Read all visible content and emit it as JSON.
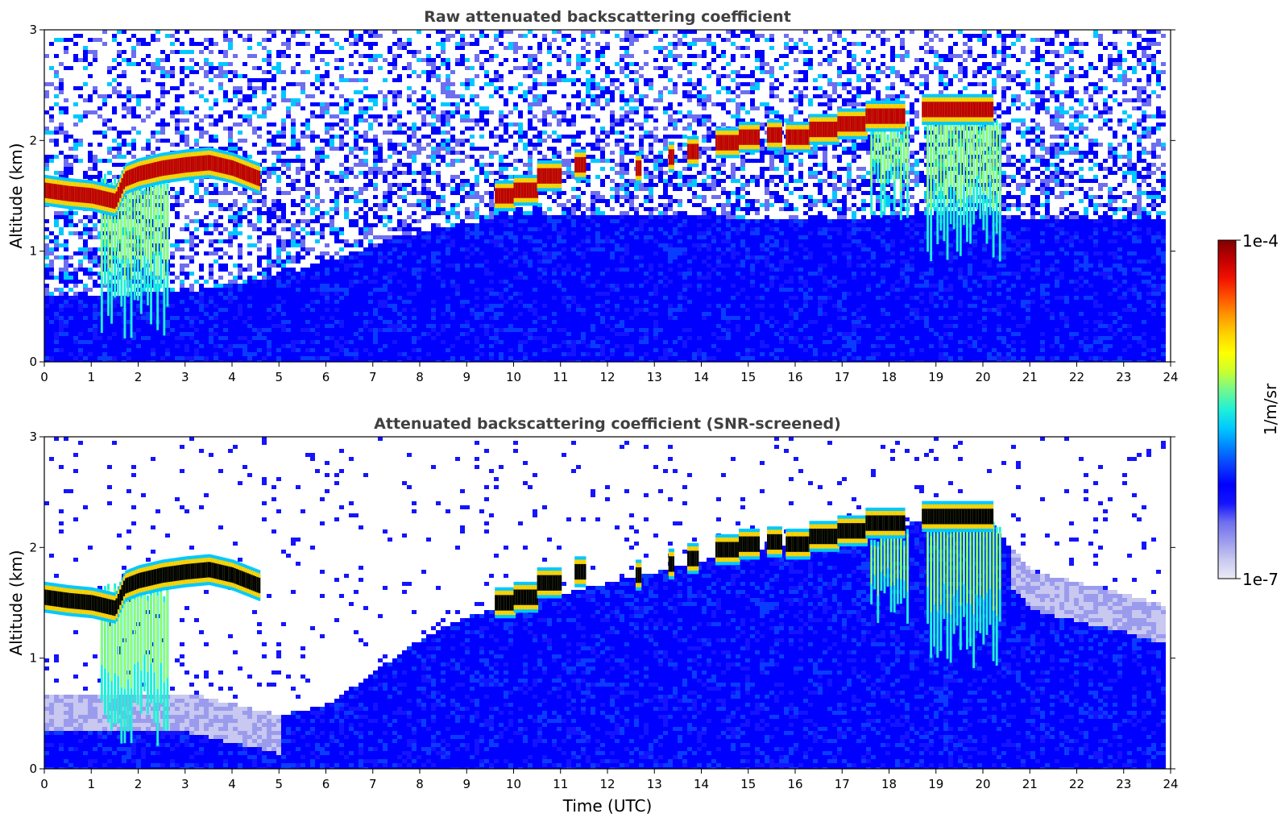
{
  "chart_data": [
    {
      "type": "heatmap",
      "title": "Raw attenuated backscattering coefficient",
      "xlabel": "",
      "ylabel": "Altitude (km)",
      "xlim": [
        0,
        24
      ],
      "ylim": [
        0,
        3
      ],
      "x_ticks": [
        "0",
        "1",
        "2",
        "3",
        "4",
        "5",
        "6",
        "7",
        "8",
        "9",
        "10",
        "11",
        "12",
        "13",
        "14",
        "15",
        "16",
        "17",
        "18",
        "19",
        "20",
        "21",
        "22",
        "23",
        "24"
      ],
      "y_ticks": [
        "0",
        "1",
        "2",
        "3"
      ],
      "data_end_time": 23.8,
      "cloud_layer": {
        "time": [
          0.0,
          0.5,
          1.0,
          1.5,
          1.7,
          2.0,
          2.5,
          3.0,
          3.5,
          4.0,
          4.6
        ],
        "altitude": [
          1.55,
          1.52,
          1.5,
          1.45,
          1.65,
          1.7,
          1.75,
          1.78,
          1.8,
          1.75,
          1.65
        ]
      },
      "cloud_segments": [
        {
          "t0": 9.6,
          "t1": 10.0,
          "altitude": 1.5
        },
        {
          "t0": 10.0,
          "t1": 10.5,
          "altitude": 1.55
        },
        {
          "t0": 10.5,
          "t1": 11.0,
          "altitude": 1.68
        },
        {
          "t0": 11.3,
          "t1": 11.5,
          "altitude": 1.78
        },
        {
          "t0": 12.6,
          "t1": 12.7,
          "altitude": 1.75
        },
        {
          "t0": 13.3,
          "t1": 13.4,
          "altitude": 1.85
        },
        {
          "t0": 13.7,
          "t1": 13.9,
          "altitude": 1.9
        },
        {
          "t0": 14.3,
          "t1": 14.8,
          "altitude": 1.98
        },
        {
          "t0": 14.8,
          "t1": 15.2,
          "altitude": 2.03
        },
        {
          "t0": 15.4,
          "t1": 15.7,
          "altitude": 2.05
        },
        {
          "t0": 15.8,
          "t1": 16.3,
          "altitude": 2.03
        },
        {
          "t0": 16.3,
          "t1": 16.9,
          "altitude": 2.1
        },
        {
          "t0": 16.9,
          "t1": 17.5,
          "altitude": 2.15
        },
        {
          "t0": 17.5,
          "t1": 18.3,
          "altitude": 2.22
        },
        {
          "t0": 18.7,
          "t1": 20.2,
          "altitude": 2.28
        }
      ],
      "precip_shafts": [
        {
          "t0": 1.2,
          "t1": 2.6,
          "top": 1.7,
          "bottom": 0.2
        },
        {
          "t0": 17.6,
          "t1": 18.4,
          "top": 2.2,
          "bottom": 1.2
        },
        {
          "t0": 18.8,
          "t1": 20.4,
          "top": 2.3,
          "bottom": 0.9
        }
      ]
    },
    {
      "type": "heatmap",
      "title": "Attenuated backscattering coefficient (SNR-screened)",
      "xlabel": "Time (UTC)",
      "ylabel": "Altitude (km)",
      "xlim": [
        0,
        24
      ],
      "ylim": [
        0,
        3
      ],
      "x_ticks": [
        "0",
        "1",
        "2",
        "3",
        "4",
        "5",
        "6",
        "7",
        "8",
        "9",
        "10",
        "11",
        "12",
        "13",
        "14",
        "15",
        "16",
        "17",
        "18",
        "19",
        "20",
        "21",
        "22",
        "23",
        "24"
      ],
      "y_ticks": [
        "0",
        "1",
        "2",
        "3"
      ],
      "data_end_time": 23.8,
      "boundary_layer_top": {
        "time": [
          0,
          3,
          5,
          6,
          7,
          8,
          9,
          10,
          11,
          12,
          13,
          14,
          15,
          16,
          17,
          18,
          19,
          20,
          21,
          22,
          23,
          23.8
        ],
        "altitude": [
          0.7,
          0.7,
          0.5,
          0.6,
          0.9,
          1.2,
          1.4,
          1.5,
          1.6,
          1.7,
          1.8,
          1.9,
          2.0,
          2.05,
          2.1,
          2.2,
          2.3,
          2.3,
          1.8,
          1.7,
          1.6,
          1.5
        ]
      }
    }
  ],
  "colorbar": {
    "min_label": "1e-7",
    "max_label": "1e-4",
    "unit_label": "1/m/sr",
    "scale": "log",
    "colors": [
      "#ebebf7",
      "#c8c8f0",
      "#9b9bee",
      "#6e6ef0",
      "#1414ff",
      "#0000ff",
      "#0a3cff",
      "#0082ff",
      "#00c8ff",
      "#20f0d8",
      "#70f890",
      "#c8ff30",
      "#ffff00",
      "#ffd200",
      "#ff9600",
      "#ff5000",
      "#f01000",
      "#c00000",
      "#800000"
    ]
  }
}
